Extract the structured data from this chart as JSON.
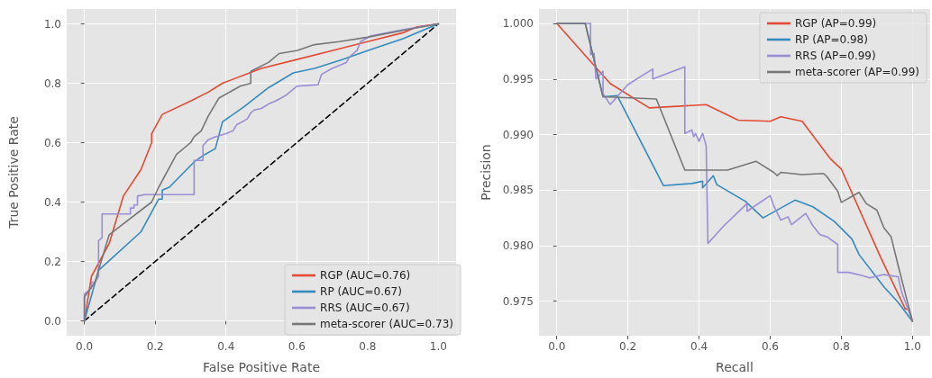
{
  "chart_data": [
    {
      "type": "line",
      "xlabel": "False Positive Rate",
      "ylabel": "True Positive Rate",
      "xlim": [
        -0.05,
        1.05
      ],
      "ylim": [
        -0.05,
        1.05
      ],
      "xticks": [
        {
          "value": 0,
          "label": "0.0"
        },
        {
          "value": 0.2,
          "label": "0.2"
        },
        {
          "value": 0.4,
          "label": "0.4"
        },
        {
          "value": 0.6,
          "label": "0.6"
        },
        {
          "value": 0.8,
          "label": "0.8"
        },
        {
          "value": 1,
          "label": "1.0"
        }
      ],
      "yticks": [
        {
          "value": 0,
          "label": "0.0"
        },
        {
          "value": 0.2,
          "label": "0.2"
        },
        {
          "value": 0.4,
          "label": "0.4"
        },
        {
          "value": 0.6,
          "label": "0.6"
        },
        {
          "value": 0.8,
          "label": "0.8"
        },
        {
          "value": 1,
          "label": "1.0"
        }
      ],
      "grid": true,
      "legend": "bottom right",
      "marker": "none",
      "line_style": "solid",
      "series": [
        {
          "name": "RGP (AUC=0.76)",
          "color": "#e24a33",
          "x": [
            0,
            0.02,
            0.07,
            0.11,
            0.16,
            0.19,
            0.19,
            0.22,
            0.3,
            0.35,
            0.39,
            0.5,
            0.6,
            0.7,
            0.8,
            0.9,
            0.94,
            1
          ],
          "values": [
            0,
            0.15,
            0.26,
            0.42,
            0.51,
            0.6,
            0.63,
            0.695,
            0.74,
            0.77,
            0.8,
            0.85,
            0.88,
            0.91,
            0.94,
            0.97,
            0.99,
            1
          ]
        },
        {
          "name": "RP (AUC=0.67)",
          "color": "#348abd",
          "x": [
            0,
            0.04,
            0.16,
            0.21,
            0.22,
            0.22,
            0.24,
            0.31,
            0.34,
            0.37,
            0.39,
            0.45,
            0.52,
            0.59,
            0.65,
            0.73,
            0.8,
            0.9,
            1
          ],
          "values": [
            0,
            0.17,
            0.3,
            0.41,
            0.41,
            0.44,
            0.45,
            0.535,
            0.56,
            0.58,
            0.67,
            0.72,
            0.785,
            0.835,
            0.85,
            0.88,
            0.91,
            0.95,
            1
          ]
        },
        {
          "name": "RRS (AUC=0.67)",
          "color": "#988ed5",
          "x": [
            0,
            0,
            0.02,
            0.02,
            0.03,
            0.04,
            0.04,
            0.05,
            0.05,
            0.13,
            0.13,
            0.14,
            0.14,
            0.15,
            0.15,
            0.17,
            0.31,
            0.31,
            0.335,
            0.335,
            0.35,
            0.37,
            0.4,
            0.42,
            0.43,
            0.46,
            0.47,
            0.48,
            0.5,
            0.52,
            0.54,
            0.57,
            0.6,
            0.66,
            0.67,
            0.7,
            0.72,
            0.74,
            0.75,
            0.77,
            0.78,
            0.81,
            0.9,
            1
          ],
          "values": [
            0,
            0.09,
            0.11,
            0.13,
            0.13,
            0.15,
            0.27,
            0.28,
            0.36,
            0.36,
            0.38,
            0.38,
            0.39,
            0.39,
            0.42,
            0.425,
            0.425,
            0.54,
            0.54,
            0.59,
            0.61,
            0.62,
            0.63,
            0.64,
            0.66,
            0.68,
            0.7,
            0.71,
            0.715,
            0.73,
            0.74,
            0.76,
            0.79,
            0.795,
            0.83,
            0.85,
            0.86,
            0.87,
            0.89,
            0.91,
            0.94,
            0.96,
            0.98,
            1
          ]
        },
        {
          "name": "meta-scorer (AUC=0.73)",
          "color": "#777777",
          "x": [
            0,
            0,
            0.03,
            0.07,
            0.19,
            0.21,
            0.26,
            0.3,
            0.31,
            0.33,
            0.35,
            0.37,
            0.38,
            0.44,
            0.47,
            0.47,
            0.52,
            0.55,
            0.6,
            0.65,
            0.72,
            0.8,
            0.93,
            1
          ],
          "values": [
            0,
            0.08,
            0.13,
            0.29,
            0.4,
            0.45,
            0.56,
            0.6,
            0.62,
            0.64,
            0.69,
            0.73,
            0.75,
            0.79,
            0.8,
            0.84,
            0.87,
            0.9,
            0.91,
            0.93,
            0.94,
            0.955,
            0.985,
            1
          ]
        },
        {
          "color": "#000000",
          "line_style": "dashed",
          "x": [
            0,
            1
          ],
          "values": [
            0,
            1
          ]
        }
      ]
    },
    {
      "type": "line",
      "xlabel": "Recall",
      "ylabel": "Precision",
      "xlim": [
        -0.05,
        1.05
      ],
      "ylim": [
        0.9719,
        1.0013
      ],
      "xticks": [
        {
          "value": 0,
          "label": "0.0"
        },
        {
          "value": 0.2,
          "label": "0.2"
        },
        {
          "value": 0.4,
          "label": "0.4"
        },
        {
          "value": 0.6,
          "label": "0.6"
        },
        {
          "value": 0.8,
          "label": "0.8"
        },
        {
          "value": 1,
          "label": "1.0"
        }
      ],
      "yticks": [
        {
          "value": 0.975,
          "label": "0.975"
        },
        {
          "value": 0.98,
          "label": "0.980"
        },
        {
          "value": 0.985,
          "label": "0.985"
        },
        {
          "value": 0.99,
          "label": "0.990"
        },
        {
          "value": 0.995,
          "label": "0.995"
        },
        {
          "value": 1,
          "label": "1.000"
        }
      ],
      "grid": true,
      "legend": "top right",
      "marker": "none",
      "line_style": "solid",
      "series": [
        {
          "name": "RGP (AP=0.99)",
          "color": "#e24a33",
          "x": [
            0,
            0.15,
            0.26,
            0.42,
            0.51,
            0.6,
            0.63,
            0.69,
            0.77,
            0.8,
            0.91,
            0.98,
            0.99,
            1
          ],
          "values": [
            1,
            0.9946,
            0.9924,
            0.9927,
            0.9913,
            0.9912,
            0.9916,
            0.9912,
            0.9878,
            0.9869,
            0.979,
            0.9743,
            0.9743,
            0.9732
          ]
        },
        {
          "name": "RP (AP=0.98)",
          "color": "#348abd",
          "x": [
            0,
            0.08,
            0.13,
            0.17,
            0.3,
            0.38,
            0.41,
            0.41,
            0.44,
            0.45,
            0.53,
            0.58,
            0.67,
            0.72,
            0.78,
            0.83,
            0.85,
            0.92,
            0.96,
            1
          ],
          "values": [
            1,
            1,
            0.9934,
            0.9935,
            0.9854,
            0.9856,
            0.9858,
            0.9852,
            0.9863,
            0.9855,
            0.984,
            0.9825,
            0.9841,
            0.9835,
            0.9822,
            0.9806,
            0.9792,
            0.9763,
            0.9749,
            0.9732
          ]
        },
        {
          "name": "RRS (AP=0.99)",
          "color": "#988ed5",
          "x": [
            0,
            0.095,
            0.095,
            0.105,
            0.11,
            0.13,
            0.13,
            0.15,
            0.2,
            0.27,
            0.27,
            0.36,
            0.36,
            0.38,
            0.385,
            0.39,
            0.4,
            0.41,
            0.42,
            0.425,
            0.47,
            0.535,
            0.535,
            0.6,
            0.61,
            0.63,
            0.65,
            0.66,
            0.7,
            0.72,
            0.74,
            0.76,
            0.79,
            0.79,
            0.82,
            0.86,
            0.88,
            0.92,
            0.96,
            0.97,
            1
          ],
          "values": [
            1,
            1,
            0.9972,
            0.9973,
            0.995,
            0.9957,
            0.9937,
            0.9927,
            0.9945,
            0.9959,
            0.995,
            0.9961,
            0.9901,
            0.9904,
            0.9898,
            0.9901,
            0.9894,
            0.9901,
            0.989,
            0.9802,
            0.9818,
            0.9838,
            0.9831,
            0.9845,
            0.9836,
            0.9823,
            0.9826,
            0.9819,
            0.9829,
            0.9818,
            0.981,
            0.9808,
            0.9801,
            0.9776,
            0.9776,
            0.9773,
            0.9771,
            0.9774,
            0.9772,
            0.9758,
            0.9732
          ]
        },
        {
          "name": "meta-scorer (AP=0.99)",
          "color": "#777777",
          "x": [
            0,
            0.08,
            0.13,
            0.28,
            0.36,
            0.42,
            0.48,
            0.56,
            0.61,
            0.62,
            0.63,
            0.69,
            0.75,
            0.76,
            0.79,
            0.8,
            0.85,
            0.87,
            0.9,
            0.92,
            0.94,
            0.96,
            0.98,
            1
          ],
          "values": [
            1,
            1,
            0.9934,
            0.9932,
            0.9868,
            0.9868,
            0.9868,
            0.9876,
            0.9866,
            0.9863,
            0.9866,
            0.9864,
            0.9865,
            0.9862,
            0.9849,
            0.9839,
            0.9848,
            0.9838,
            0.9832,
            0.9816,
            0.9808,
            0.9782,
            0.9757,
            0.9732
          ]
        }
      ]
    }
  ]
}
